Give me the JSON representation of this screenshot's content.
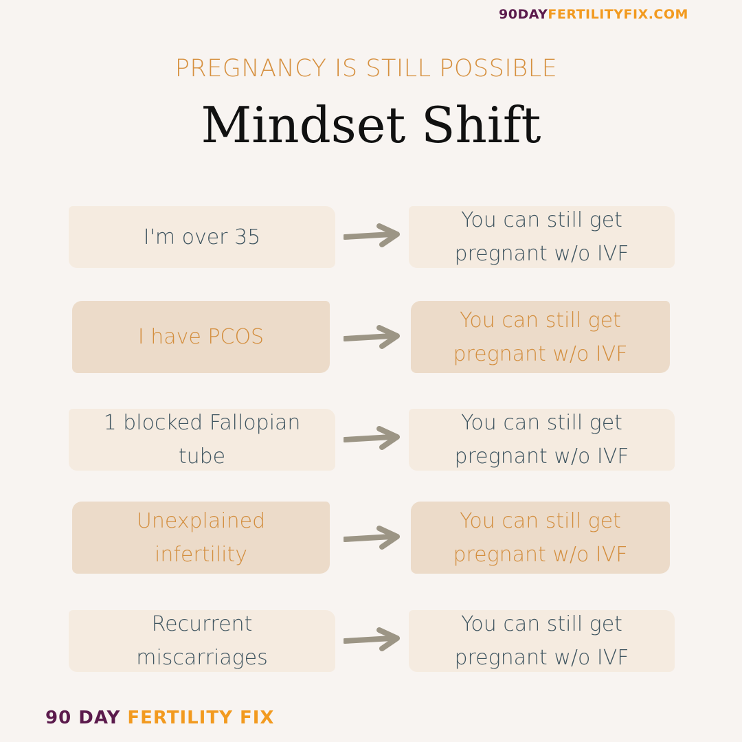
{
  "header": {
    "url_part1": "90DAY",
    "url_part2": "FERTILITYFIX.COM",
    "subtitle": "PREGNANCY IS STILL POSSIBLE",
    "title": "Mindset Shift"
  },
  "rows": [
    {
      "left": "I'm over 35",
      "right": "You can still get pregnant w/o IVF",
      "style": "light"
    },
    {
      "left": "I have PCOS",
      "right": "You can still get pregnant w/o IVF",
      "style": "dark"
    },
    {
      "left": "1 blocked Fallopian tube",
      "right": "You can still get pregnant w/o IVF",
      "style": "light"
    },
    {
      "left": "Unexplained infertility",
      "right": "You can still get pregnant w/o IVF",
      "style": "dark"
    },
    {
      "left": "Recurrent miscarriages",
      "right": "You can still get pregnant w/o IVF",
      "style": "light"
    }
  ],
  "footer": {
    "brand_part1": "90 DAY ",
    "brand_part2": "FERTILITY FIX"
  },
  "colors": {
    "background": "#f8f4f1",
    "light_box": "#f5ebe0",
    "dark_box": "#ecdbc9",
    "slate_text": "#3f5560",
    "orange_text": "#d38e3e",
    "arrow": "#9c9585",
    "brand_purple": "#5b1a4c",
    "brand_orange": "#f29a1f"
  },
  "icons": {
    "arrow": "arrow-right-icon"
  }
}
